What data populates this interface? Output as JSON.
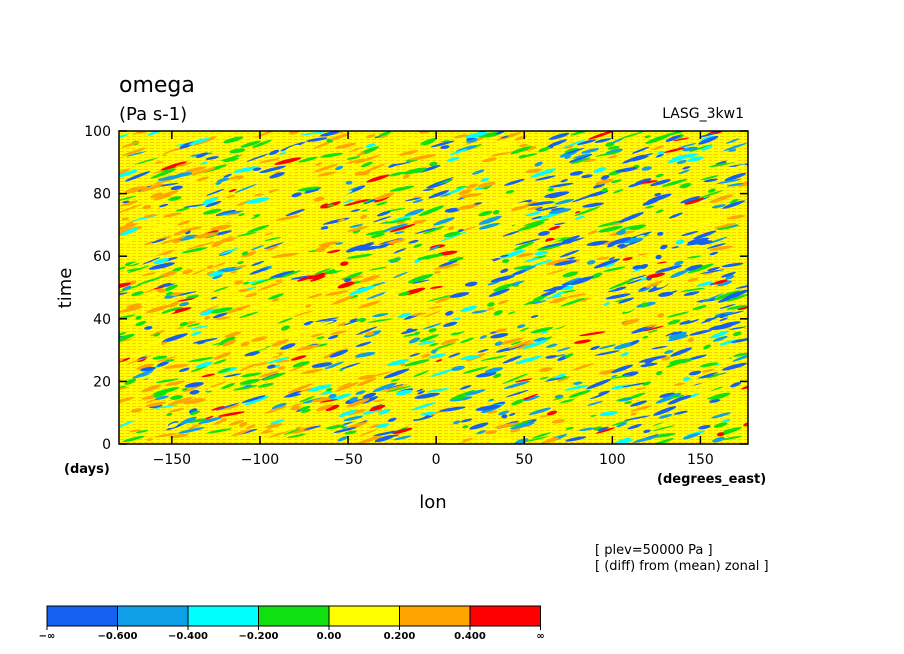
{
  "chart_data": {
    "type": "heatmap",
    "title": "omega",
    "units": "(Pa s-1)",
    "model": "LASG_3kw1",
    "xlabel": "lon",
    "ylabel": "time",
    "x_unit": "(degrees_east)",
    "y_unit": "(days)",
    "xlim": [
      -180,
      177
    ],
    "ylim": [
      0,
      100
    ],
    "x_ticks": [
      -150,
      -100,
      -50,
      0,
      50,
      100,
      150
    ],
    "y_ticks": [
      0,
      20,
      40,
      60,
      80,
      100
    ],
    "x_tick_labels": [
      "−150",
      "−100",
      "−50",
      "0",
      "50",
      "100",
      "150"
    ],
    "y_tick_labels": [
      "0",
      "20",
      "40",
      "60",
      "80",
      "100"
    ],
    "annotations": [
      "[ plev=50000 Pa ]",
      "[ (diff) from (mean) zonal ]"
    ],
    "colorbar": {
      "colors": [
        "#1560f0",
        "#10a0e8",
        "#00ffff",
        "#10e010",
        "#ffff00",
        "#ffa500",
        "#ff0000"
      ],
      "boundaries": [
        "−∞",
        "−0.600",
        "−0.400",
        "−0.200",
        "0.00",
        "0.200",
        "0.400",
        "∞"
      ]
    }
  }
}
